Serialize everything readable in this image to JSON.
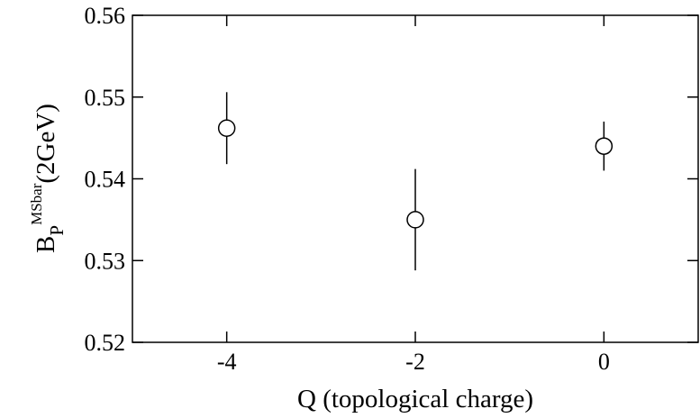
{
  "chart_data": {
    "type": "scatter",
    "x_label": "Q (topological charge)",
    "y_label": {
      "base": "B",
      "subscript": "P",
      "superscript": "MSbar",
      "rest": "(2GeV)"
    },
    "x": [
      -4,
      -2,
      0
    ],
    "series": [
      {
        "color": "#000000",
        "values": [
          0.5462,
          0.535,
          0.544
        ],
        "errors": [
          0.0044,
          0.0062,
          0.003
        ]
      }
    ],
    "xlim": [
      -5,
      1
    ],
    "xticks": [
      -4,
      -2,
      0
    ],
    "ylim": [
      0.52,
      0.56
    ],
    "yticks": [
      0.52,
      0.53,
      0.54,
      0.55,
      0.56
    ]
  }
}
